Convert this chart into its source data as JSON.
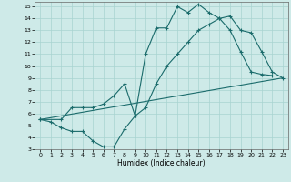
{
  "xlabel": "Humidex (Indice chaleur)",
  "background_color": "#ceeae8",
  "line_color": "#1a6b6b",
  "xlim": [
    -0.5,
    23.5
  ],
  "ylim": [
    3,
    15.4
  ],
  "line1_x": [
    0,
    1,
    2,
    3,
    4,
    5,
    6,
    7,
    8,
    9,
    10,
    11,
    12,
    13,
    14,
    15,
    16,
    17,
    18,
    19,
    20,
    21,
    22
  ],
  "line1_y": [
    5.5,
    5.3,
    4.8,
    4.5,
    4.5,
    3.7,
    3.2,
    3.2,
    4.7,
    5.8,
    11.0,
    13.2,
    13.2,
    15.0,
    14.5,
    15.2,
    14.5,
    14.0,
    13.0,
    11.2,
    9.5,
    9.3,
    9.2
  ],
  "line2_x": [
    0,
    2,
    3,
    4,
    5,
    6,
    7,
    8,
    9,
    10,
    11,
    12,
    13,
    14,
    15,
    16,
    17,
    18,
    19,
    20,
    21,
    22,
    23
  ],
  "line2_y": [
    5.5,
    5.5,
    6.5,
    6.5,
    6.5,
    6.8,
    7.5,
    8.5,
    5.8,
    6.5,
    8.5,
    10.0,
    11.0,
    12.0,
    13.0,
    13.5,
    14.0,
    14.2,
    13.0,
    12.8,
    11.2,
    9.5,
    9.0
  ],
  "line3_x": [
    0,
    23
  ],
  "line3_y": [
    5.5,
    9.0
  ],
  "yticks": [
    3,
    4,
    5,
    6,
    7,
    8,
    9,
    10,
    11,
    12,
    13,
    14,
    15
  ],
  "xticks": [
    0,
    1,
    2,
    3,
    4,
    5,
    6,
    7,
    8,
    9,
    10,
    11,
    12,
    13,
    14,
    15,
    16,
    17,
    18,
    19,
    20,
    21,
    22,
    23
  ]
}
